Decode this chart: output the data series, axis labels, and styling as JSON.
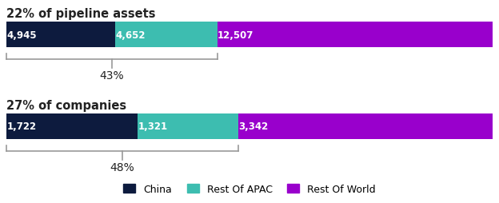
{
  "bar1": {
    "title": "22% of pipeline assets",
    "values": [
      4945,
      4652,
      12507
    ],
    "labels": [
      "4,945",
      "4,652",
      "12,507"
    ],
    "bracket_label": "43%"
  },
  "bar2": {
    "title": "27% of companies",
    "values": [
      1722,
      1321,
      3342
    ],
    "labels": [
      "1,722",
      "1,321",
      "3,342"
    ],
    "bracket_label": "48%"
  },
  "colors": [
    "#0d1b3e",
    "#3dbdb0",
    "#9900cc"
  ],
  "legend_labels": [
    "China",
    "Rest Of APAC",
    "Rest Of World"
  ],
  "label_fontsize": 8.5,
  "title_fontsize": 10.5,
  "bracket_fontsize": 10,
  "legend_fontsize": 9,
  "background_color": "#ffffff",
  "text_color": "#ffffff",
  "title_color": "#222222",
  "bracket_color": "#999999"
}
